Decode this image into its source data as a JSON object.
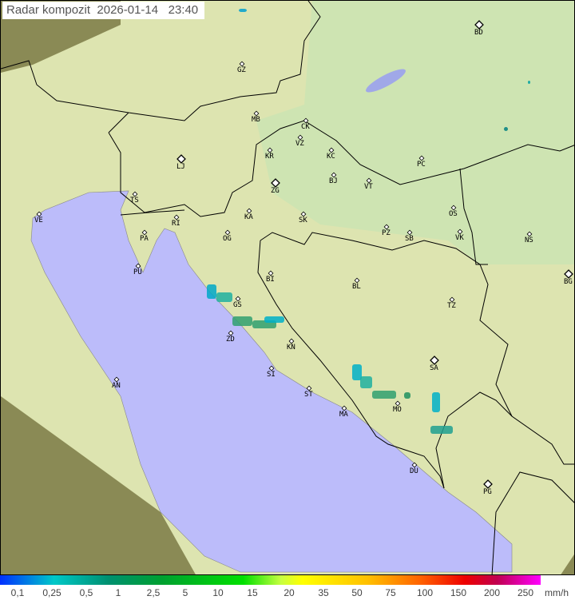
{
  "title": "Radar kompozit  2026-01-14   23:40",
  "legend": {
    "ticks": [
      "0,1",
      "0,25",
      "0,5",
      "1",
      "2,5",
      "5",
      "10",
      "15",
      "20",
      "35",
      "50",
      "75",
      "100",
      "150",
      "200",
      "250"
    ],
    "unit": "mm/h",
    "colors": [
      "#0030ff",
      "#00c8c8",
      "#009070",
      "#00a030",
      "#00e000",
      "#ffff00",
      "#ffc000",
      "#ff6000",
      "#ee0000",
      "#c00050",
      "#ff00ff"
    ]
  },
  "colors": {
    "sea": "#bcbcfa",
    "land": "#dfe6b0",
    "outside_range": "#8a8a55",
    "border": "#000000"
  },
  "cities": [
    "BD",
    "GZ",
    "MB",
    "CK",
    "VZ",
    "KR",
    "KC",
    "PC",
    "LJ",
    "BJ",
    "VT",
    "ZG",
    "TS",
    "VE",
    "RI",
    "KA",
    "SK",
    "OS",
    "NS",
    "PA",
    "PZ",
    "SB",
    "VK",
    "OG",
    "PU",
    "BI",
    "BL",
    "BG",
    "GS",
    "TZ",
    "ZD",
    "KN",
    "SA",
    "AN",
    "SI",
    "ST",
    "MO",
    "MA",
    "DU",
    "PG"
  ]
}
